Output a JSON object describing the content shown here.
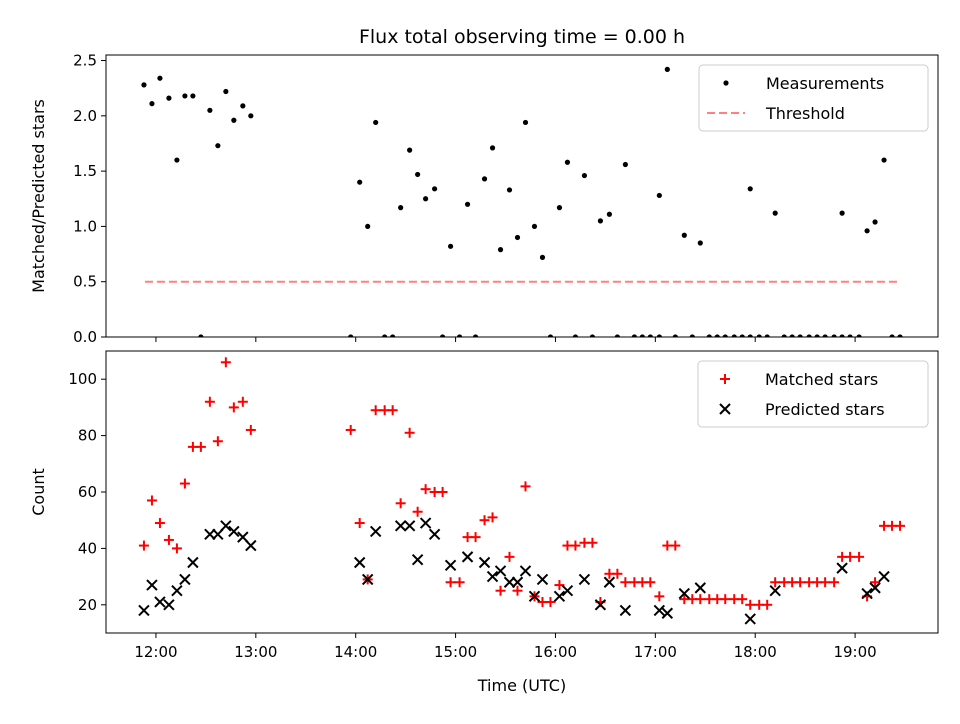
{
  "figure_title": "Flux total observing time = 0.00 h",
  "colors": {
    "measurement": "#000000",
    "threshold": "#ff8080",
    "matched": "#ff0000",
    "predicted": "#000000"
  },
  "chart_data": [
    {
      "type": "scatter",
      "title": "Flux total observing time = 0.00 h",
      "xlabel": "",
      "ylabel": "Matched/Predicted stars",
      "xlim": [
        11.5,
        19.83
      ],
      "ylim": [
        0.0,
        2.55
      ],
      "yticks": [
        "0.0",
        "0.5",
        "1.0",
        "1.5",
        "2.0",
        "2.5"
      ],
      "ytick_values": [
        0.0,
        0.5,
        1.0,
        1.5,
        2.0,
        2.5
      ],
      "legend": "top-right",
      "legend_entries": [
        "Measurements",
        "Threshold"
      ],
      "threshold": {
        "name": "Threshold",
        "y": 0.5,
        "x_range": [
          11.89,
          19.45
        ]
      },
      "series": [
        {
          "name": "Measurements",
          "points": [
            [
              11.88,
              2.28
            ],
            [
              11.96,
              2.11
            ],
            [
              12.04,
              2.34
            ],
            [
              12.13,
              2.16
            ],
            [
              12.21,
              1.6
            ],
            [
              12.29,
              2.18
            ],
            [
              12.37,
              2.18
            ],
            [
              12.45,
              0.0
            ],
            [
              12.54,
              2.05
            ],
            [
              12.62,
              1.73
            ],
            [
              12.7,
              2.22
            ],
            [
              12.78,
              1.96
            ],
            [
              12.87,
              2.09
            ],
            [
              12.95,
              2.0
            ],
            [
              13.95,
              0.0
            ],
            [
              14.04,
              1.4
            ],
            [
              14.12,
              1.0
            ],
            [
              14.2,
              1.94
            ],
            [
              14.29,
              0.0
            ],
            [
              14.37,
              0.0
            ],
            [
              14.45,
              1.17
            ],
            [
              14.54,
              1.69
            ],
            [
              14.62,
              1.47
            ],
            [
              14.7,
              1.25
            ],
            [
              14.79,
              1.34
            ],
            [
              14.87,
              0.0
            ],
            [
              14.95,
              0.82
            ],
            [
              15.04,
              0.0
            ],
            [
              15.12,
              1.2
            ],
            [
              15.2,
              0.0
            ],
            [
              15.29,
              1.43
            ],
            [
              15.37,
              1.71
            ],
            [
              15.45,
              0.79
            ],
            [
              15.54,
              1.33
            ],
            [
              15.62,
              0.9
            ],
            [
              15.7,
              1.94
            ],
            [
              15.79,
              1.0
            ],
            [
              15.87,
              0.72
            ],
            [
              15.95,
              0.0
            ],
            [
              16.04,
              1.17
            ],
            [
              16.12,
              1.58
            ],
            [
              16.2,
              0.0
            ],
            [
              16.29,
              1.46
            ],
            [
              16.37,
              0.0
            ],
            [
              16.45,
              1.05
            ],
            [
              16.54,
              1.11
            ],
            [
              16.62,
              0.0
            ],
            [
              16.7,
              1.56
            ],
            [
              16.79,
              0.0
            ],
            [
              16.87,
              0.0
            ],
            [
              16.95,
              0.0
            ],
            [
              17.04,
              0.0
            ],
            [
              17.04,
              1.28
            ],
            [
              17.12,
              2.42
            ],
            [
              17.2,
              0.0
            ],
            [
              17.29,
              0.92
            ],
            [
              17.37,
              0.0
            ],
            [
              17.45,
              0.85
            ],
            [
              17.54,
              0.0
            ],
            [
              17.62,
              0.0
            ],
            [
              17.7,
              0.0
            ],
            [
              17.79,
              0.0
            ],
            [
              17.87,
              0.0
            ],
            [
              17.95,
              0.0
            ],
            [
              17.95,
              1.34
            ],
            [
              18.04,
              0.0
            ],
            [
              18.12,
              0.0
            ],
            [
              18.2,
              1.12
            ],
            [
              18.29,
              0.0
            ],
            [
              18.37,
              0.0
            ],
            [
              18.45,
              0.0
            ],
            [
              18.54,
              0.0
            ],
            [
              18.62,
              0.0
            ],
            [
              18.7,
              0.0
            ],
            [
              18.79,
              0.0
            ],
            [
              18.87,
              0.0
            ],
            [
              18.87,
              1.12
            ],
            [
              18.95,
              0.0
            ],
            [
              19.04,
              0.0
            ],
            [
              19.12,
              0.96
            ],
            [
              19.2,
              1.04
            ],
            [
              19.29,
              1.6
            ],
            [
              19.37,
              0.0
            ],
            [
              19.45,
              0.0
            ]
          ]
        }
      ]
    },
    {
      "type": "scatter",
      "title": "",
      "xlabel": "Time (UTC)",
      "ylabel": "Count",
      "xlim": [
        11.5,
        19.83
      ],
      "ylim": [
        10,
        110
      ],
      "yticks": [
        "20",
        "40",
        "60",
        "80",
        "100"
      ],
      "ytick_values": [
        20,
        40,
        60,
        80,
        100
      ],
      "xticks": [
        "12:00",
        "13:00",
        "14:00",
        "15:00",
        "16:00",
        "17:00",
        "18:00",
        "19:00"
      ],
      "xtick_values": [
        12,
        13,
        14,
        15,
        16,
        17,
        18,
        19
      ],
      "legend": "top-right",
      "legend_entries": [
        "Matched stars",
        "Predicted stars"
      ],
      "series": [
        {
          "name": "Matched stars",
          "marker": "plus",
          "points": [
            [
              11.88,
              41
            ],
            [
              11.96,
              57
            ],
            [
              12.04,
              49
            ],
            [
              12.13,
              43
            ],
            [
              12.21,
              40
            ],
            [
              12.29,
              63
            ],
            [
              12.37,
              76
            ],
            [
              12.45,
              76
            ],
            [
              12.54,
              92
            ],
            [
              12.62,
              78
            ],
            [
              12.7,
              106
            ],
            [
              12.78,
              90
            ],
            [
              12.87,
              92
            ],
            [
              12.95,
              82
            ],
            [
              13.95,
              82
            ],
            [
              14.04,
              49
            ],
            [
              14.12,
              29
            ],
            [
              14.2,
              89
            ],
            [
              14.29,
              89
            ],
            [
              14.37,
              89
            ],
            [
              14.45,
              56
            ],
            [
              14.54,
              81
            ],
            [
              14.62,
              53
            ],
            [
              14.7,
              61
            ],
            [
              14.79,
              60
            ],
            [
              14.87,
              60
            ],
            [
              14.95,
              28
            ],
            [
              15.04,
              28
            ],
            [
              15.12,
              44
            ],
            [
              15.2,
              44
            ],
            [
              15.29,
              50
            ],
            [
              15.37,
              51
            ],
            [
              15.45,
              25
            ],
            [
              15.54,
              37
            ],
            [
              15.62,
              25
            ],
            [
              15.7,
              62
            ],
            [
              15.79,
              23
            ],
            [
              15.87,
              21
            ],
            [
              15.95,
              21
            ],
            [
              16.04,
              27
            ],
            [
              16.12,
              41
            ],
            [
              16.2,
              41
            ],
            [
              16.29,
              42
            ],
            [
              16.37,
              42
            ],
            [
              16.45,
              21
            ],
            [
              16.54,
              31
            ],
            [
              16.62,
              31
            ],
            [
              16.7,
              28
            ],
            [
              16.79,
              28
            ],
            [
              16.87,
              28
            ],
            [
              16.95,
              28
            ],
            [
              17.04,
              23
            ],
            [
              17.12,
              41
            ],
            [
              17.2,
              41
            ],
            [
              17.29,
              22
            ],
            [
              17.37,
              22
            ],
            [
              17.45,
              22
            ],
            [
              17.54,
              22
            ],
            [
              17.62,
              22
            ],
            [
              17.7,
              22
            ],
            [
              17.79,
              22
            ],
            [
              17.87,
              22
            ],
            [
              17.95,
              20
            ],
            [
              18.04,
              20
            ],
            [
              18.12,
              20
            ],
            [
              18.2,
              28
            ],
            [
              18.29,
              28
            ],
            [
              18.37,
              28
            ],
            [
              18.45,
              28
            ],
            [
              18.54,
              28
            ],
            [
              18.62,
              28
            ],
            [
              18.7,
              28
            ],
            [
              18.79,
              28
            ],
            [
              18.87,
              37
            ],
            [
              18.95,
              37
            ],
            [
              19.04,
              37
            ],
            [
              19.12,
              23
            ],
            [
              19.2,
              28
            ],
            [
              19.29,
              48
            ],
            [
              19.37,
              48
            ],
            [
              19.45,
              48
            ]
          ]
        },
        {
          "name": "Predicted stars",
          "marker": "x",
          "points": [
            [
              11.88,
              18
            ],
            [
              11.96,
              27
            ],
            [
              12.04,
              21
            ],
            [
              12.13,
              20
            ],
            [
              12.21,
              25
            ],
            [
              12.29,
              29
            ],
            [
              12.37,
              35
            ],
            [
              12.54,
              45
            ],
            [
              12.62,
              45
            ],
            [
              12.7,
              48
            ],
            [
              12.78,
              46
            ],
            [
              12.87,
              44
            ],
            [
              12.95,
              41
            ],
            [
              14.04,
              35
            ],
            [
              14.12,
              29
            ],
            [
              14.2,
              46
            ],
            [
              14.45,
              48
            ],
            [
              14.54,
              48
            ],
            [
              14.62,
              36
            ],
            [
              14.7,
              49
            ],
            [
              14.79,
              45
            ],
            [
              14.95,
              34
            ],
            [
              15.12,
              37
            ],
            [
              15.29,
              35
            ],
            [
              15.37,
              30
            ],
            [
              15.45,
              32
            ],
            [
              15.54,
              28
            ],
            [
              15.62,
              28
            ],
            [
              15.7,
              32
            ],
            [
              15.79,
              23
            ],
            [
              15.87,
              29
            ],
            [
              16.04,
              23
            ],
            [
              16.12,
              25
            ],
            [
              16.29,
              29
            ],
            [
              16.45,
              20
            ],
            [
              16.54,
              28
            ],
            [
              16.7,
              18
            ],
            [
              17.04,
              18
            ],
            [
              17.12,
              17
            ],
            [
              17.29,
              24
            ],
            [
              17.45,
              26
            ],
            [
              17.95,
              15
            ],
            [
              18.2,
              25
            ],
            [
              18.87,
              33
            ],
            [
              19.12,
              24
            ],
            [
              19.2,
              26
            ],
            [
              19.29,
              30
            ]
          ]
        }
      ]
    }
  ]
}
